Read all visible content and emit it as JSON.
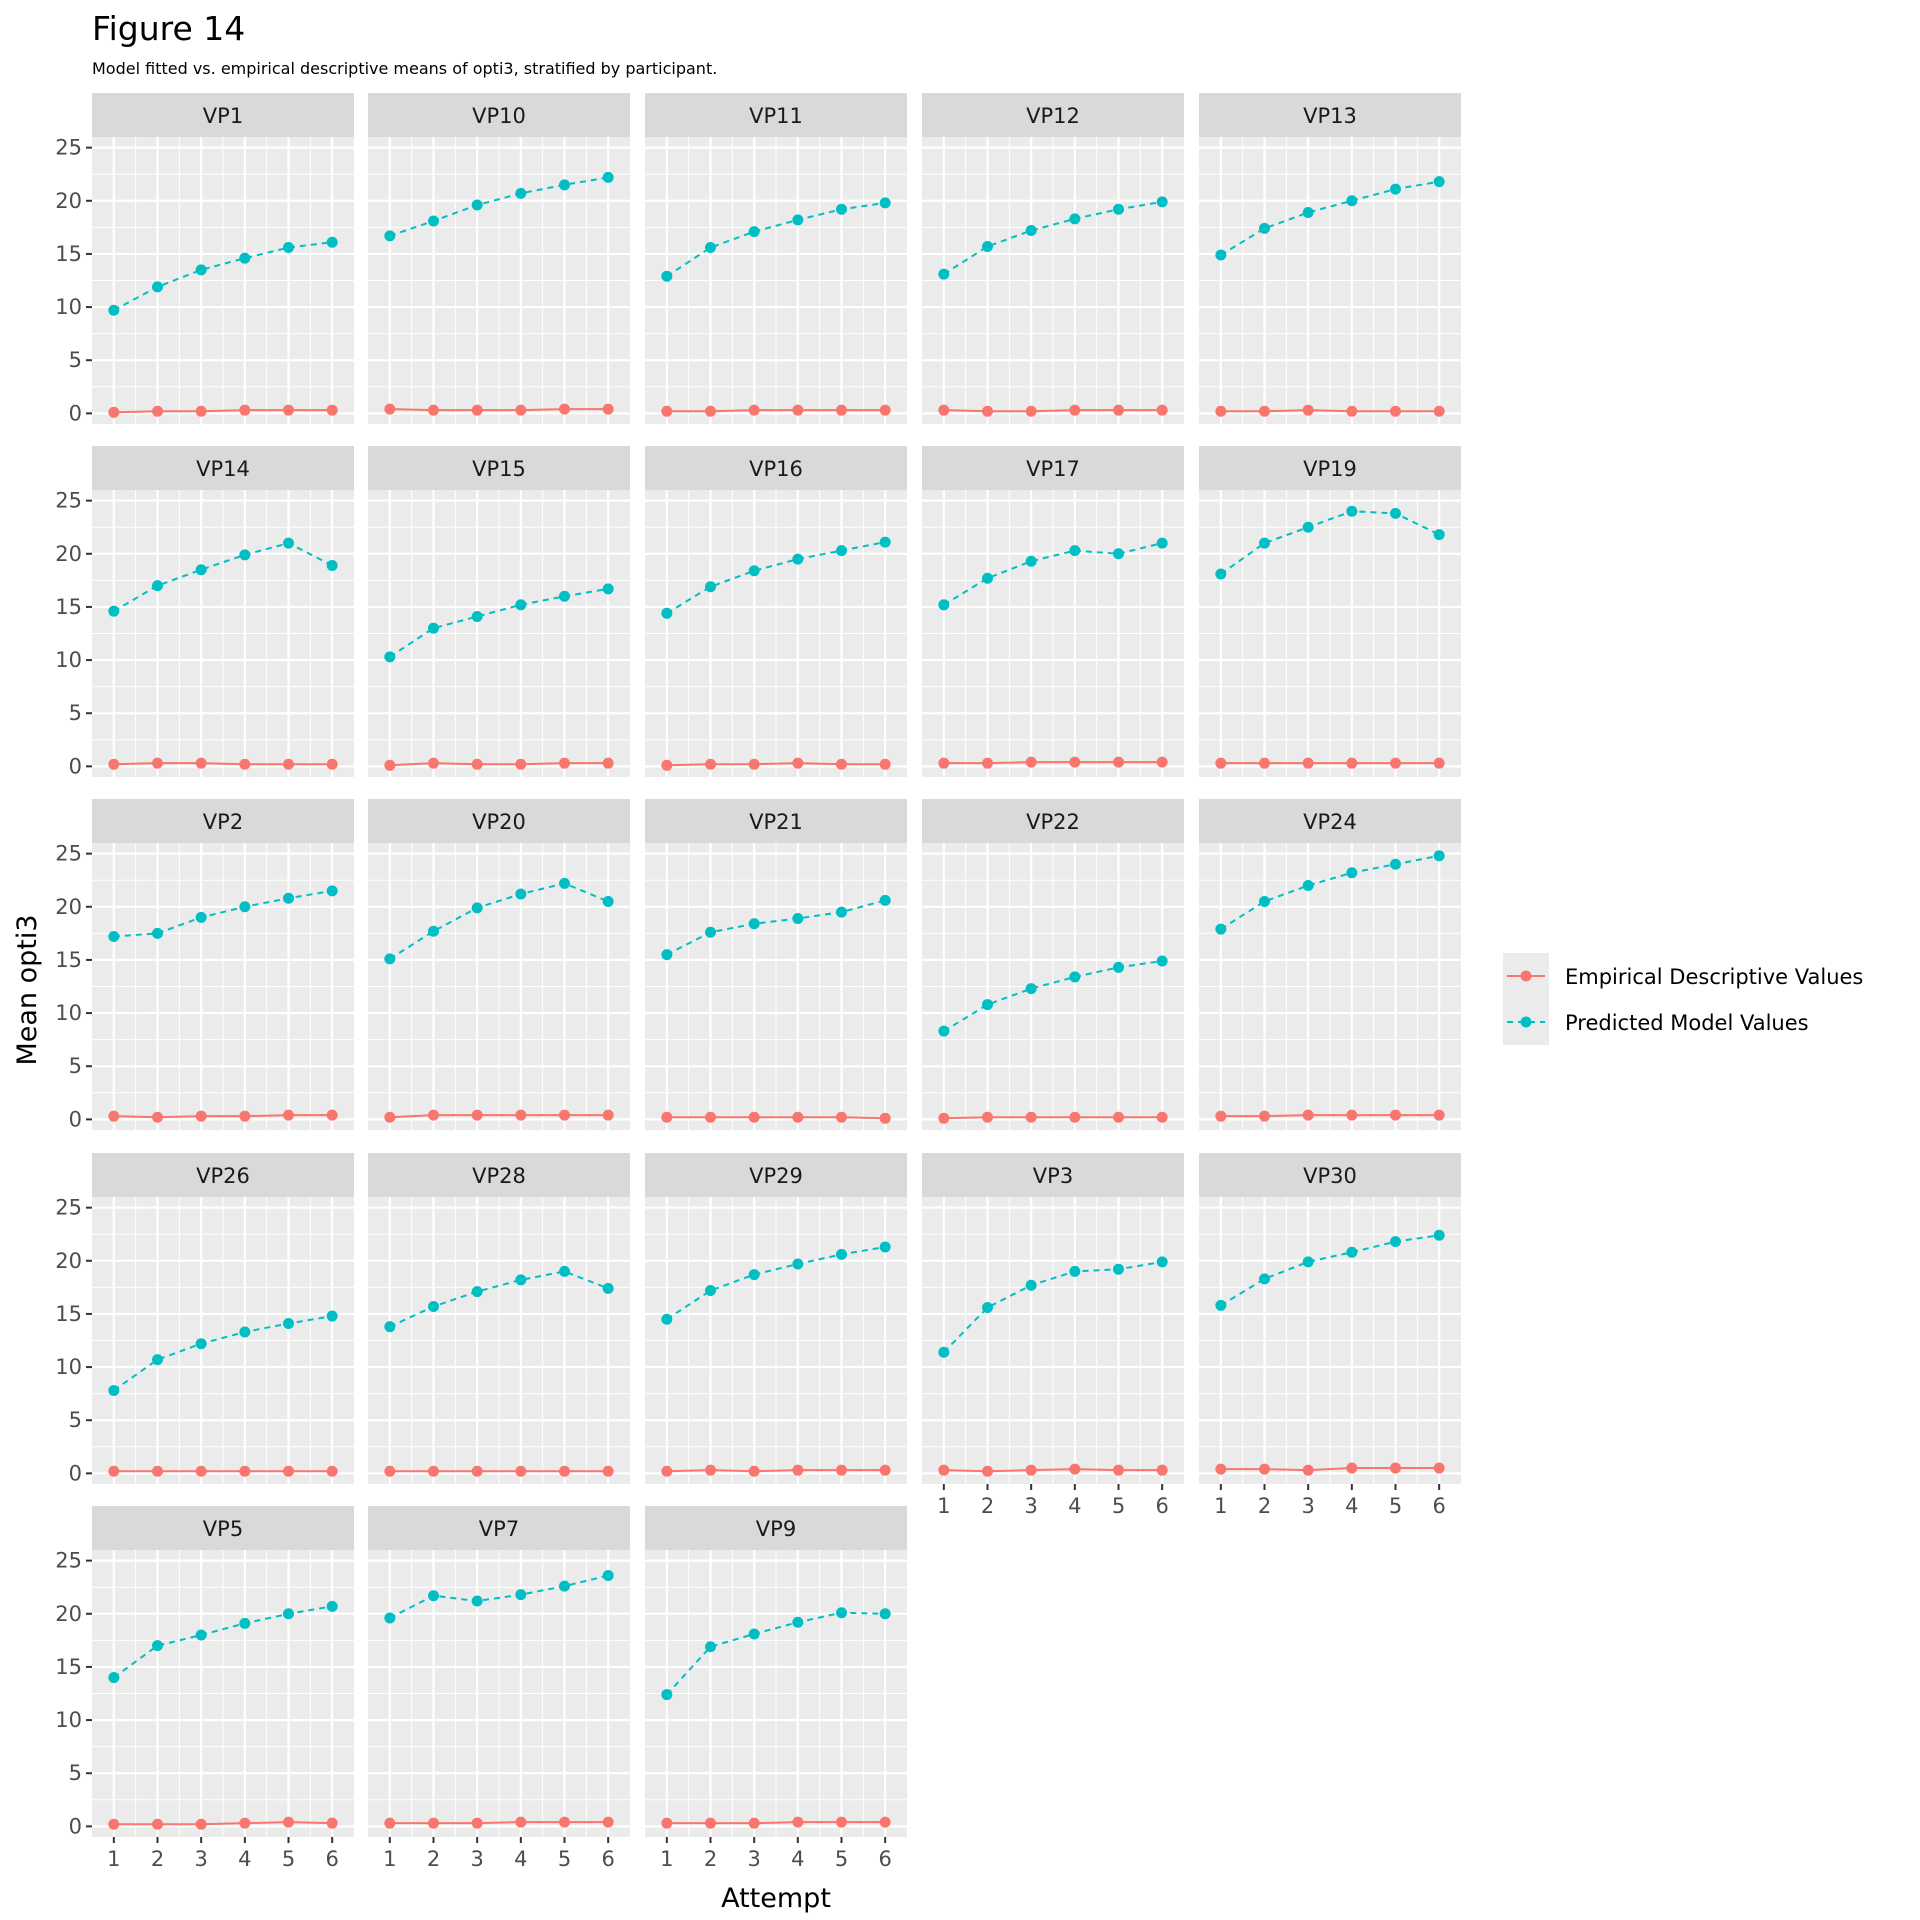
{
  "chart_data": {
    "type": "line",
    "title": "Figure 14",
    "subtitle": "Model fitted vs. empirical descriptive means of opti3, stratified by participant.",
    "xlabel": "Attempt",
    "ylabel": "Mean opti3",
    "x": [
      1,
      2,
      3,
      4,
      5,
      6
    ],
    "x_ticks": [
      "1",
      "2",
      "3",
      "4",
      "5",
      "6"
    ],
    "ylim": [
      -1,
      26
    ],
    "y_ticks": [
      0,
      5,
      10,
      15,
      20,
      25
    ],
    "y_tick_labels": [
      "0",
      "5",
      "10",
      "15",
      "20",
      "25"
    ],
    "grid": true,
    "legend_position": "right",
    "legend": [
      {
        "name": "Empirical Descriptive Values",
        "color": "#f8766d",
        "linetype": "solid"
      },
      {
        "name": "Predicted Model Values",
        "color": "#00bfc4",
        "linetype": "dashed"
      }
    ],
    "panels": [
      {
        "label": "VP1",
        "empirical": [
          0.1,
          0.2,
          0.2,
          0.3,
          0.3,
          0.3
        ],
        "predicted": [
          9.7,
          11.9,
          13.5,
          14.6,
          15.6,
          16.1
        ]
      },
      {
        "label": "VP10",
        "empirical": [
          0.4,
          0.3,
          0.3,
          0.3,
          0.4,
          0.4
        ],
        "predicted": [
          16.7,
          18.1,
          19.6,
          20.7,
          21.5,
          22.2
        ]
      },
      {
        "label": "VP11",
        "empirical": [
          0.2,
          0.2,
          0.3,
          0.3,
          0.3,
          0.3
        ],
        "predicted": [
          12.9,
          15.6,
          17.1,
          18.2,
          19.2,
          19.8
        ]
      },
      {
        "label": "VP12",
        "empirical": [
          0.3,
          0.2,
          0.2,
          0.3,
          0.3,
          0.3
        ],
        "predicted": [
          13.1,
          15.7,
          17.2,
          18.3,
          19.2,
          19.9
        ]
      },
      {
        "label": "VP13",
        "empirical": [
          0.2,
          0.2,
          0.3,
          0.2,
          0.2,
          0.2
        ],
        "predicted": [
          14.9,
          17.4,
          18.9,
          20.0,
          21.1,
          21.8
        ]
      },
      {
        "label": "VP14",
        "empirical": [
          0.2,
          0.3,
          0.3,
          0.2,
          0.2,
          0.2
        ],
        "predicted": [
          14.6,
          17.0,
          18.5,
          19.9,
          21.0,
          18.9
        ]
      },
      {
        "label": "VP15",
        "empirical": [
          0.1,
          0.3,
          0.2,
          0.2,
          0.3,
          0.3
        ],
        "predicted": [
          10.3,
          13.0,
          14.1,
          15.2,
          16.0,
          16.7
        ]
      },
      {
        "label": "VP16",
        "empirical": [
          0.1,
          0.2,
          0.2,
          0.3,
          0.2,
          0.2
        ],
        "predicted": [
          14.4,
          16.9,
          18.4,
          19.5,
          20.3,
          21.1
        ]
      },
      {
        "label": "VP17",
        "empirical": [
          0.3,
          0.3,
          0.4,
          0.4,
          0.4,
          0.4
        ],
        "predicted": [
          15.2,
          17.7,
          19.3,
          20.3,
          20.0,
          21.0
        ]
      },
      {
        "label": "VP19",
        "empirical": [
          0.3,
          0.3,
          0.3,
          0.3,
          0.3,
          0.3
        ],
        "predicted": [
          18.1,
          21.0,
          22.5,
          24.0,
          23.8,
          21.8
        ]
      },
      {
        "label": "VP2",
        "empirical": [
          0.3,
          0.2,
          0.3,
          0.3,
          0.4,
          0.4
        ],
        "predicted": [
          17.2,
          17.5,
          19.0,
          20.0,
          20.8,
          21.5
        ]
      },
      {
        "label": "VP20",
        "empirical": [
          0.2,
          0.4,
          0.4,
          0.4,
          0.4,
          0.4
        ],
        "predicted": [
          15.1,
          17.7,
          19.9,
          21.2,
          22.2,
          20.5
        ]
      },
      {
        "label": "VP21",
        "empirical": [
          0.2,
          0.2,
          0.2,
          0.2,
          0.2,
          0.1
        ],
        "predicted": [
          15.5,
          17.6,
          18.4,
          18.9,
          19.5,
          20.6
        ]
      },
      {
        "label": "VP22",
        "empirical": [
          0.1,
          0.2,
          0.2,
          0.2,
          0.2,
          0.2
        ],
        "predicted": [
          8.3,
          10.8,
          12.3,
          13.4,
          14.3,
          14.9
        ]
      },
      {
        "label": "VP24",
        "empirical": [
          0.3,
          0.3,
          0.4,
          0.4,
          0.4,
          0.4
        ],
        "predicted": [
          17.9,
          20.5,
          22.0,
          23.2,
          24.0,
          24.8
        ]
      },
      {
        "label": "VP26",
        "empirical": [
          0.2,
          0.2,
          0.2,
          0.2,
          0.2,
          0.2
        ],
        "predicted": [
          7.8,
          10.7,
          12.2,
          13.3,
          14.1,
          14.8
        ]
      },
      {
        "label": "VP28",
        "empirical": [
          0.2,
          0.2,
          0.2,
          0.2,
          0.2,
          0.2
        ],
        "predicted": [
          13.8,
          15.7,
          17.1,
          18.2,
          19.0,
          17.4
        ]
      },
      {
        "label": "VP29",
        "empirical": [
          0.2,
          0.3,
          0.2,
          0.3,
          0.3,
          0.3
        ],
        "predicted": [
          14.5,
          17.2,
          18.7,
          19.7,
          20.6,
          21.3
        ]
      },
      {
        "label": "VP3",
        "empirical": [
          0.3,
          0.2,
          0.3,
          0.4,
          0.3,
          0.3
        ],
        "predicted": [
          11.4,
          15.6,
          17.7,
          19.0,
          19.2,
          19.9
        ]
      },
      {
        "label": "VP30",
        "empirical": [
          0.4,
          0.4,
          0.3,
          0.5,
          0.5,
          0.5
        ],
        "predicted": [
          15.8,
          18.3,
          19.9,
          20.8,
          21.8,
          22.4
        ]
      },
      {
        "label": "VP5",
        "empirical": [
          0.2,
          0.2,
          0.2,
          0.3,
          0.4,
          0.3
        ],
        "predicted": [
          14.0,
          17.0,
          18.0,
          19.1,
          20.0,
          20.7
        ]
      },
      {
        "label": "VP7",
        "empirical": [
          0.3,
          0.3,
          0.3,
          0.4,
          0.4,
          0.4
        ],
        "predicted": [
          19.6,
          21.7,
          21.2,
          21.8,
          22.6,
          23.6
        ]
      },
      {
        "label": "VP9",
        "empirical": [
          0.3,
          0.3,
          0.3,
          0.4,
          0.4,
          0.4
        ],
        "predicted": [
          12.4,
          16.9,
          18.1,
          19.2,
          20.1,
          20.0
        ]
      }
    ]
  }
}
